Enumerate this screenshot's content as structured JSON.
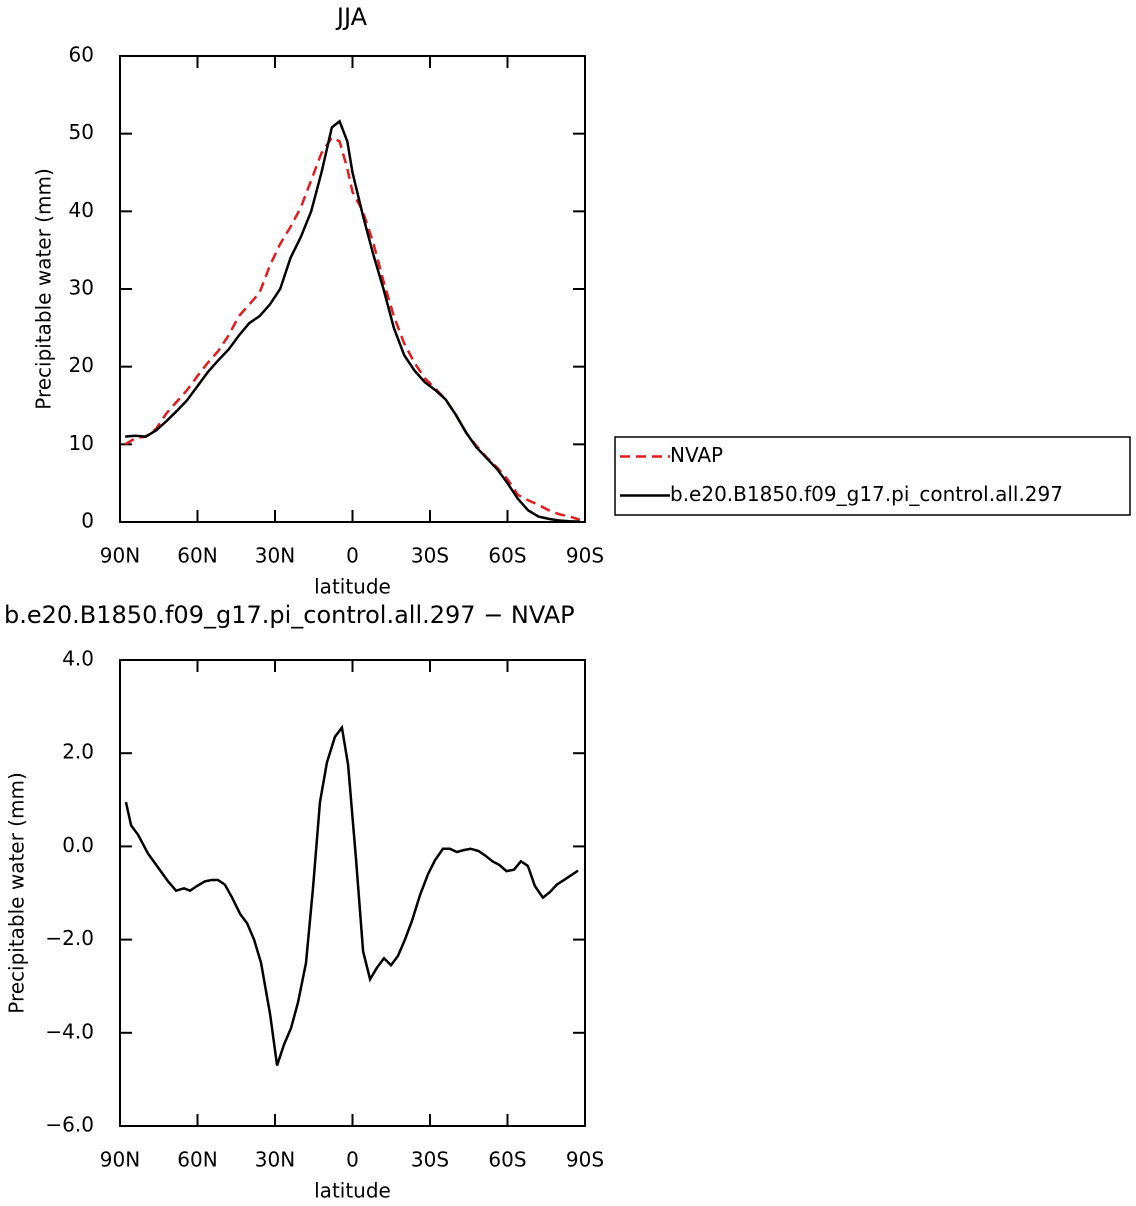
{
  "chart_data": [
    {
      "type": "line",
      "title": "JJA",
      "x_label": "latitude",
      "y_label": "Precipitable water (mm)",
      "xlim": [
        90,
        -90
      ],
      "xticks": [
        {
          "value": 90,
          "label": "90N"
        },
        {
          "value": 60,
          "label": "60N"
        },
        {
          "value": 30,
          "label": "30N"
        },
        0,
        {
          "value": -30,
          "label": "30S"
        },
        {
          "value": -60,
          "label": "60S"
        },
        {
          "value": -90,
          "label": "90S"
        }
      ],
      "ylim": [
        0,
        60
      ],
      "yticks": [
        0,
        10,
        20,
        30,
        40,
        50,
        60
      ],
      "legend": "right",
      "x": [
        88,
        84,
        80,
        76,
        72,
        68,
        64,
        60,
        56,
        52,
        48,
        44,
        40,
        36,
        32,
        28,
        24,
        20,
        16,
        12,
        8,
        5,
        2,
        0,
        -4,
        -8,
        -12,
        -16,
        -20,
        -24,
        -28,
        -32,
        -36,
        -40,
        -44,
        -48,
        -52,
        -56,
        -60,
        -64,
        -68,
        -72,
        -76,
        -80,
        -84,
        -88
      ],
      "series": [
        {
          "name": "NVAP",
          "color": "#e41a1c",
          "line_style": "dashed",
          "values": [
            10.0,
            10.8,
            11.0,
            12.0,
            14.0,
            15.5,
            17.0,
            18.8,
            20.5,
            22.0,
            24.0,
            26.5,
            28.0,
            29.5,
            33.0,
            35.8,
            38.0,
            40.5,
            44.0,
            47.5,
            49.5,
            49.0,
            45.5,
            42.5,
            40.0,
            36.0,
            31.0,
            26.5,
            23.0,
            20.5,
            18.5,
            17.2,
            15.8,
            13.8,
            11.5,
            9.8,
            8.3,
            7.0,
            5.5,
            3.5,
            2.8,
            2.2,
            1.5,
            1.0,
            0.7,
            0.3
          ]
        },
        {
          "name": "b.e20.B1850.f09_g17.pi_control.all.297",
          "color": "#000000",
          "line_style": "solid",
          "values": [
            11.0,
            11.1,
            11.0,
            11.8,
            13.0,
            14.3,
            15.7,
            17.5,
            19.3,
            20.8,
            22.2,
            24.0,
            25.6,
            26.5,
            28.0,
            30.0,
            34.0,
            36.7,
            40.0,
            45.0,
            50.8,
            51.6,
            49.0,
            45.0,
            39.5,
            34.5,
            30.0,
            25.0,
            21.5,
            19.5,
            18.0,
            17.0,
            15.8,
            13.8,
            11.5,
            9.6,
            8.2,
            6.8,
            5.0,
            3.0,
            1.5,
            0.7,
            0.4,
            0.2,
            0.1,
            0.05
          ]
        }
      ]
    },
    {
      "type": "line",
      "title": "b.e20.B1850.f09_g17.pi_control.all.297 − NVAP",
      "x_label": "latitude",
      "y_label": "Precipitable water (mm)",
      "xlim": [
        90,
        -90
      ],
      "xticks": [
        {
          "value": 90,
          "label": "90N"
        },
        {
          "value": 60,
          "label": "60N"
        },
        {
          "value": 30,
          "label": "30N"
        },
        0,
        {
          "value": -30,
          "label": "30S"
        },
        {
          "value": -60,
          "label": "60S"
        },
        {
          "value": -90,
          "label": "90S"
        }
      ],
      "ylim": [
        -6,
        4
      ],
      "yticks": [
        {
          "value": -6,
          "label": "−6.0"
        },
        {
          "value": -4,
          "label": "−4.0"
        },
        {
          "value": -2,
          "label": "−2.0"
        },
        {
          "value": 0,
          "label": "0.0"
        },
        {
          "value": 2,
          "label": "2.0"
        },
        {
          "value": 4,
          "label": "4.0"
        }
      ],
      "color": "#000000",
      "x": [
        87.7,
        85.7,
        83.0,
        79.2,
        75.3,
        71.4,
        68.3,
        65.2,
        62.9,
        60.2,
        57.1,
        54.4,
        52.1,
        49.4,
        46.6,
        43.5,
        40.8,
        38.1,
        35.4,
        31.9,
        29.2,
        26.5,
        23.8,
        21.1,
        18.0,
        15.3,
        12.6,
        9.9,
        6.8,
        4.1,
        1.7,
        -1.4,
        -4.1,
        -6.8,
        -9.5,
        -12.2,
        -14.9,
        -17.6,
        -20.3,
        -23.0,
        -26.1,
        -29.2,
        -31.9,
        -35.0,
        -37.7,
        -40.4,
        -43.0,
        -45.7,
        -48.8,
        -51.5,
        -54.2,
        -56.9,
        -59.6,
        -62.5,
        -65.2,
        -67.9,
        -70.6,
        -73.7,
        -76.4,
        -79.1,
        -81.9,
        -84.6,
        -87.3
      ],
      "values": [
        0.95,
        0.45,
        0.25,
        -0.15,
        -0.45,
        -0.75,
        -0.95,
        -0.9,
        -0.95,
        -0.85,
        -0.75,
        -0.72,
        -0.72,
        -0.82,
        -1.1,
        -1.45,
        -1.65,
        -2.0,
        -2.5,
        -3.6,
        -4.7,
        -4.25,
        -3.9,
        -3.35,
        -2.5,
        -0.9,
        0.95,
        1.8,
        2.35,
        2.55,
        1.75,
        -0.3,
        -2.25,
        -2.85,
        -2.6,
        -2.4,
        -2.55,
        -2.35,
        -2.0,
        -1.6,
        -1.05,
        -0.6,
        -0.3,
        -0.05,
        -0.05,
        -0.12,
        -0.08,
        -0.05,
        -0.1,
        -0.2,
        -0.32,
        -0.4,
        -0.53,
        -0.5,
        -0.32,
        -0.42,
        -0.85,
        -1.1,
        -0.98,
        -0.82,
        -0.72,
        -0.62,
        -0.52
      ]
    }
  ]
}
